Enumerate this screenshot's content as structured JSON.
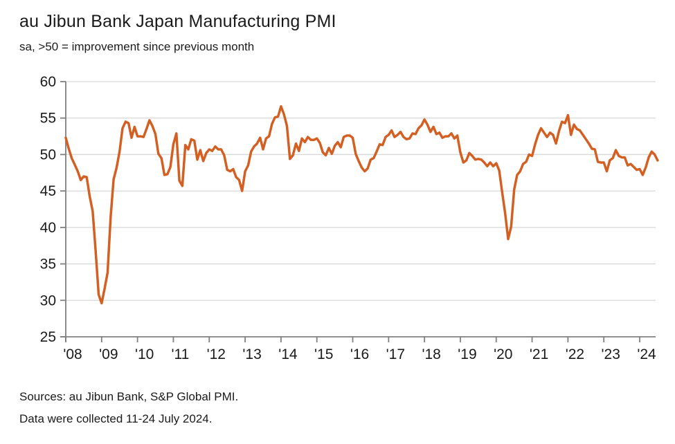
{
  "header": {
    "title": "au Jibun Bank Japan Manufacturing PMI",
    "subtitle": "sa, >50 = improvement since previous month"
  },
  "footer": {
    "sources": "Sources: au Jibun Bank, S&P Global PMI.",
    "collection": "Data were collected 11-24 July 2024."
  },
  "colors": {
    "line": "#d35f22",
    "gridline": "#d7d7d7",
    "axis": "#7f7f7f",
    "tick_label": "#1a1a1a",
    "background": "#ffffff"
  },
  "chart_data": {
    "type": "line",
    "title": "au Jibun Bank Japan Manufacturing PMI",
    "subtitle": "sa, >50 = improvement since previous month",
    "xlabel": "",
    "ylabel": "",
    "ylim": [
      25,
      60
    ],
    "y_ticks": [
      60,
      55,
      50,
      45,
      40,
      35,
      30,
      25
    ],
    "grid": "horizontal",
    "legend_position": "none",
    "x_frequency": "monthly",
    "x_range": "2008-01 to 2024-07",
    "x_tick_labels": [
      "'08",
      "'09",
      "'10",
      "'11",
      "'12",
      "'13",
      "'14",
      "'15",
      "'16",
      "'17",
      "'18",
      "'19",
      "'20",
      "'21",
      "'22",
      "'23",
      "'24"
    ],
    "series": [
      {
        "name": "Japan Manufacturing PMI (sa)",
        "values": [
          52.3,
          50.8,
          49.5,
          48.6,
          47.7,
          46.5,
          47.0,
          46.9,
          44.3,
          42.2,
          36.7,
          30.8,
          29.6,
          31.6,
          33.8,
          41.4,
          46.6,
          48.2,
          50.4,
          53.6,
          54.5,
          54.3,
          52.3,
          53.8,
          52.5,
          52.5,
          52.4,
          53.5,
          54.7,
          53.9,
          52.8,
          50.1,
          49.5,
          47.2,
          47.3,
          48.3,
          51.4,
          52.9,
          46.4,
          45.7,
          51.3,
          50.7,
          52.1,
          51.9,
          49.3,
          50.6,
          49.1,
          50.2,
          50.7,
          50.5,
          51.1,
          50.7,
          50.7,
          49.9,
          47.9,
          47.7,
          48.0,
          46.9,
          46.5,
          45.0,
          47.7,
          48.5,
          50.4,
          51.1,
          51.5,
          52.3,
          50.7,
          52.2,
          52.5,
          54.2,
          55.1,
          55.2,
          56.6,
          55.5,
          53.9,
          49.4,
          49.9,
          51.5,
          50.5,
          52.2,
          51.7,
          52.4,
          52.0,
          52.0,
          52.2,
          51.6,
          50.3,
          49.9,
          50.9,
          50.1,
          51.2,
          51.7,
          51.0,
          52.4,
          52.6,
          52.6,
          52.3,
          50.1,
          49.1,
          48.2,
          47.7,
          48.1,
          49.3,
          49.5,
          50.4,
          51.4,
          51.3,
          52.4,
          52.7,
          53.3,
          52.4,
          52.7,
          53.1,
          52.4,
          52.1,
          52.2,
          52.9,
          52.8,
          53.6,
          54.0,
          54.8,
          54.1,
          53.1,
          53.8,
          52.8,
          53.0,
          52.3,
          52.5,
          52.5,
          52.9,
          52.2,
          52.6,
          50.3,
          48.9,
          49.2,
          50.2,
          49.8,
          49.3,
          49.4,
          49.3,
          48.9,
          48.4,
          48.9,
          48.4,
          48.8,
          47.8,
          44.8,
          41.9,
          38.4,
          40.1,
          45.2,
          47.2,
          47.7,
          48.7,
          49.0,
          50.0,
          49.8,
          51.4,
          52.7,
          53.6,
          53.0,
          52.4,
          53.0,
          52.7,
          51.5,
          53.2,
          54.5,
          54.3,
          55.4,
          52.7,
          54.1,
          53.5,
          53.3,
          52.7,
          52.1,
          51.5,
          50.8,
          50.7,
          49.0,
          48.9,
          48.9,
          47.7,
          49.2,
          49.5,
          50.6,
          49.8,
          49.6,
          49.6,
          48.5,
          48.7,
          48.3,
          47.9,
          48.0,
          47.2,
          48.2,
          49.6,
          50.4,
          50.0,
          49.2
        ]
      }
    ]
  }
}
